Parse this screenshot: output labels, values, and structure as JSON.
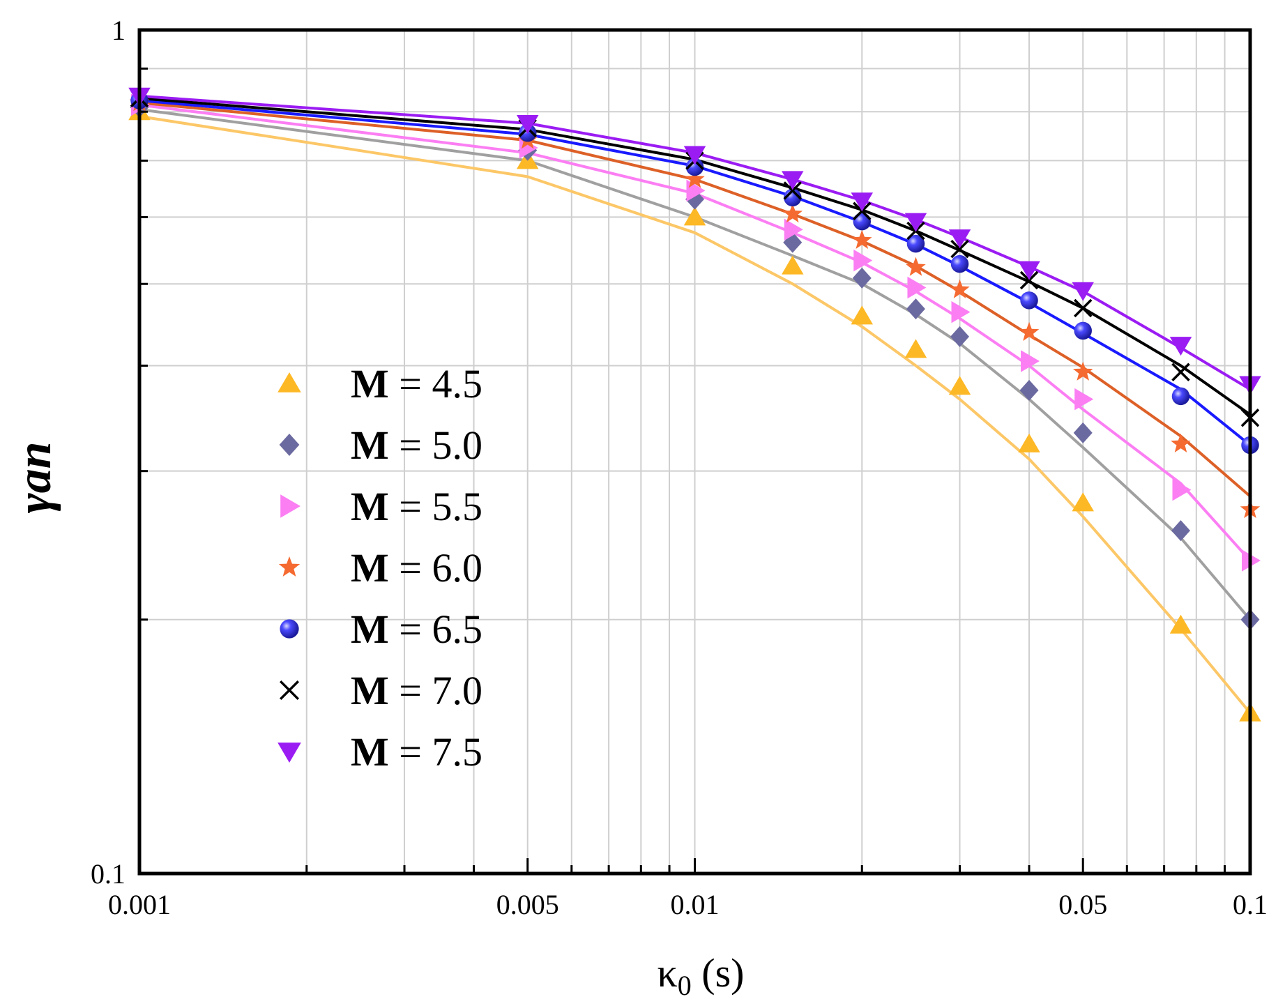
{
  "chart_data": {
    "type": "line",
    "xscale": "log",
    "yscale": "log",
    "xlabel": "κ0 (s)",
    "ylabel": "γan",
    "xlim": [
      0.001,
      0.1
    ],
    "ylim": [
      0.1,
      1
    ],
    "grid": true,
    "legend_position": "center-left",
    "x_tick_labels": [
      "0.001",
      "0.005",
      "0.01",
      "0.05",
      "0.1"
    ],
    "x_tick_values": [
      0.001,
      0.005,
      0.01,
      0.05,
      0.1
    ],
    "y_tick_labels": [
      "0.1",
      "1"
    ],
    "y_tick_values": [
      0.1,
      1
    ],
    "x": [
      0.001,
      0.005,
      0.01,
      0.015,
      0.02,
      0.025,
      0.03,
      0.04,
      0.05,
      0.075,
      0.1
    ],
    "series": [
      {
        "name": "M = 4.5",
        "legend_bold": "M",
        "legend_rest": " = 4.5",
        "marker": "triangle-up",
        "color": "#fdb825",
        "line_color": "#fcc767",
        "points": [
          0.8,
          0.7,
          0.6,
          0.525,
          0.458,
          0.418,
          0.378,
          0.323,
          0.275,
          0.197,
          0.155
        ],
        "line": [
          0.79,
          0.67,
          0.575,
          0.5,
          0.445,
          0.4,
          0.365,
          0.31,
          0.265,
          0.195,
          0.155
        ]
      },
      {
        "name": "M = 5.0",
        "legend_bold": "M",
        "legend_rest": " = 5.0",
        "marker": "diamond",
        "color": "#6b6aa0",
        "line_color": "#a0a0a0",
        "points": [
          0.81,
          0.72,
          0.63,
          0.56,
          0.508,
          0.467,
          0.433,
          0.374,
          0.333,
          0.255,
          0.2
        ],
        "line": [
          0.805,
          0.7,
          0.6,
          0.54,
          0.5,
          0.46,
          0.425,
          0.365,
          0.32,
          0.25,
          0.2
        ]
      },
      {
        "name": "M = 5.5",
        "legend_bold": "M",
        "legend_rest": " = 5.5",
        "marker": "triangle-right",
        "color": "#fb7ef3",
        "line_color": "#fb7ef3",
        "points": [
          0.815,
          0.725,
          0.645,
          0.58,
          0.533,
          0.495,
          0.463,
          0.405,
          0.365,
          0.285,
          0.235
        ],
        "line": [
          0.815,
          0.715,
          0.64,
          0.575,
          0.53,
          0.49,
          0.455,
          0.4,
          0.355,
          0.29,
          0.235
        ]
      },
      {
        "name": "M = 6.0",
        "legend_bold": "M",
        "legend_rest": " = 6.0",
        "marker": "star",
        "color": "#f56a30",
        "line_color": "#dd6027",
        "points": [
          0.82,
          0.74,
          0.665,
          0.605,
          0.563,
          0.523,
          0.492,
          0.438,
          0.393,
          0.323,
          0.27
        ],
        "line": [
          0.82,
          0.74,
          0.665,
          0.605,
          0.562,
          0.525,
          0.49,
          0.435,
          0.398,
          0.33,
          0.28
        ]
      },
      {
        "name": "M = 6.5",
        "legend_bold": "M",
        "legend_rest": " = 6.5",
        "marker": "sphere",
        "color": "#2828e0",
        "line_color": "#1a1aff",
        "points": [
          0.825,
          0.755,
          0.688,
          0.633,
          0.593,
          0.558,
          0.528,
          0.478,
          0.44,
          0.368,
          0.322
        ],
        "line": [
          0.825,
          0.752,
          0.69,
          0.635,
          0.592,
          0.557,
          0.525,
          0.475,
          0.437,
          0.375,
          0.322
        ]
      },
      {
        "name": "M = 7.0",
        "legend_bold": "M",
        "legend_rest": " = 7.0",
        "marker": "x",
        "color": "#000000",
        "line_color": "#000000",
        "points": [
          0.83,
          0.765,
          0.7,
          0.645,
          0.61,
          0.578,
          0.55,
          0.505,
          0.468,
          0.393,
          0.347
        ],
        "line": [
          0.83,
          0.762,
          0.702,
          0.65,
          0.612,
          0.578,
          0.548,
          0.503,
          0.468,
          0.4,
          0.35
        ]
      },
      {
        "name": "M = 7.5",
        "legend_bold": "M",
        "legend_rest": " = 7.5",
        "marker": "triangle-down",
        "color": "#9b1cf3",
        "line_color": "#9b1cf3",
        "points": [
          0.835,
          0.775,
          0.712,
          0.665,
          0.627,
          0.593,
          0.567,
          0.52,
          0.491,
          0.423,
          0.38
        ],
        "line": [
          0.835,
          0.775,
          0.715,
          0.665,
          0.628,
          0.596,
          0.568,
          0.524,
          0.49,
          0.42,
          0.375
        ]
      }
    ]
  }
}
